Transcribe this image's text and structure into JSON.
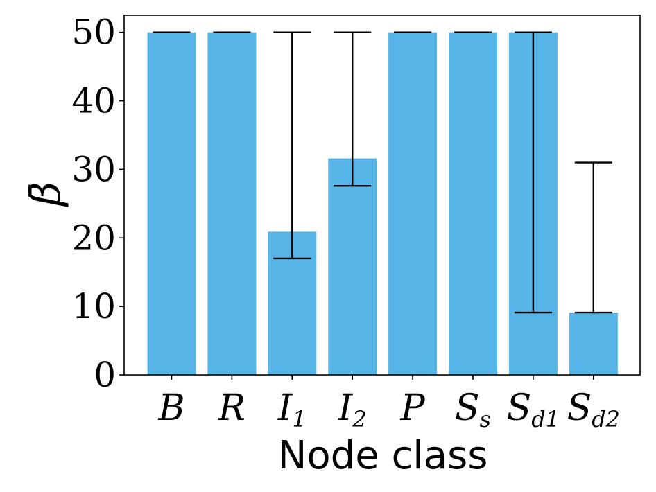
{
  "chart_data": {
    "type": "bar",
    "categories": [
      {
        "base": "B",
        "sub": ""
      },
      {
        "base": "R",
        "sub": ""
      },
      {
        "base": "I",
        "sub": "1"
      },
      {
        "base": "I",
        "sub": "2"
      },
      {
        "base": "P",
        "sub": ""
      },
      {
        "base": "S",
        "sub": "s"
      },
      {
        "base": "S",
        "sub": "d1"
      },
      {
        "base": "S",
        "sub": "d2"
      }
    ],
    "values": [
      50,
      50,
      20.9,
      31.6,
      50,
      50,
      50,
      9.1
    ],
    "error_low": [
      50,
      50,
      17.0,
      27.6,
      50,
      50,
      9.1,
      9.1
    ],
    "error_high": [
      50,
      50,
      50,
      50,
      50,
      50,
      50,
      31.0
    ],
    "xlabel": "Node class",
    "ylabel": "β̄",
    "ylim": [
      0,
      52.5
    ],
    "yticks": [
      0,
      10,
      20,
      30,
      40,
      50
    ],
    "bar_color": "#56b4e6",
    "grid": false,
    "legend": "none"
  }
}
